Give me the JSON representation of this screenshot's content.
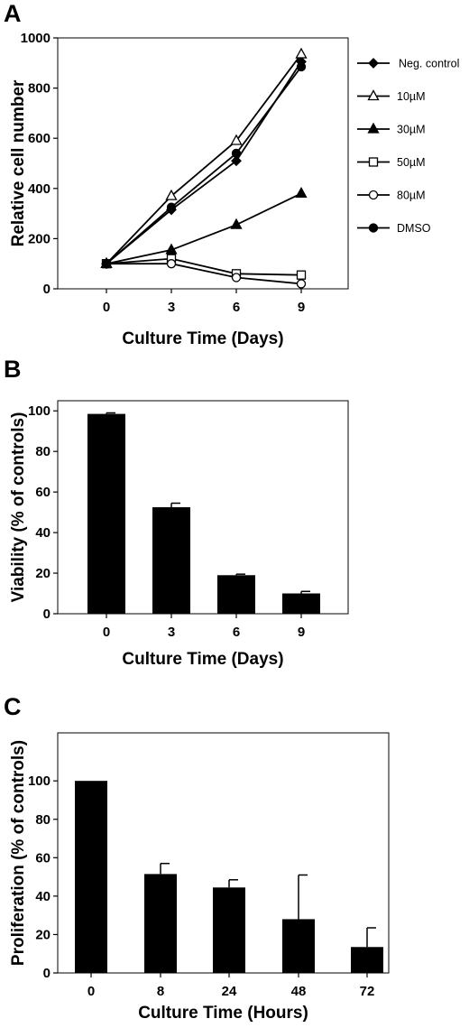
{
  "colors": {
    "ink": "#000000",
    "background": "#ffffff",
    "marker_fill_open": "#ffffff"
  },
  "chart_data": [
    {
      "panel": "A",
      "type": "line",
      "xlabel": "Culture Time (Days)",
      "ylabel": "Relative cell number",
      "x": [
        0,
        3,
        6,
        9
      ],
      "x_ticks": [
        "0",
        "3",
        "6",
        "9"
      ],
      "y_ticks": [
        "0",
        "200",
        "400",
        "600",
        "800",
        "1000"
      ],
      "ylim": [
        0,
        1000
      ],
      "grid": false,
      "legend_position": "right",
      "series": [
        {
          "name": "Neg. control",
          "marker": "filled-diamond",
          "values": [
            100,
            315,
            510,
            905
          ]
        },
        {
          "name": "10µM",
          "marker": "open-triangle",
          "values": [
            100,
            370,
            590,
            935
          ]
        },
        {
          "name": "30µM",
          "marker": "filled-triangle",
          "values": [
            100,
            155,
            255,
            380
          ]
        },
        {
          "name": "50µM",
          "marker": "open-square",
          "values": [
            100,
            120,
            60,
            55
          ]
        },
        {
          "name": "80µM",
          "marker": "open-circle",
          "values": [
            100,
            100,
            45,
            20
          ]
        },
        {
          "name": "DMSO",
          "marker": "filled-circle",
          "values": [
            100,
            325,
            540,
            885
          ]
        }
      ]
    },
    {
      "panel": "B",
      "type": "bar",
      "xlabel": "Culture Time (Days)",
      "ylabel": "Viability (% of controls)",
      "categories": [
        "0",
        "3",
        "6",
        "9"
      ],
      "values": [
        98.5,
        52.5,
        19,
        10
      ],
      "errors": [
        0.5,
        2,
        0.5,
        1
      ],
      "y_ticks": [
        "0",
        "20",
        "40",
        "60",
        "80",
        "100"
      ],
      "ylim": [
        0,
        105
      ],
      "grid": false
    },
    {
      "panel": "C",
      "type": "bar",
      "xlabel": "Culture Time (Hours)",
      "ylabel": "Proliferation (% of controls)",
      "categories": [
        "0",
        "8",
        "24",
        "48",
        "72"
      ],
      "values": [
        100,
        51.5,
        44.5,
        28,
        13.5
      ],
      "errors": [
        0,
        5.5,
        4,
        23,
        10
      ],
      "y_ticks": [
        "0",
        "20",
        "40",
        "60",
        "80",
        "100"
      ],
      "ylim": [
        0,
        125
      ],
      "grid": false
    }
  ]
}
